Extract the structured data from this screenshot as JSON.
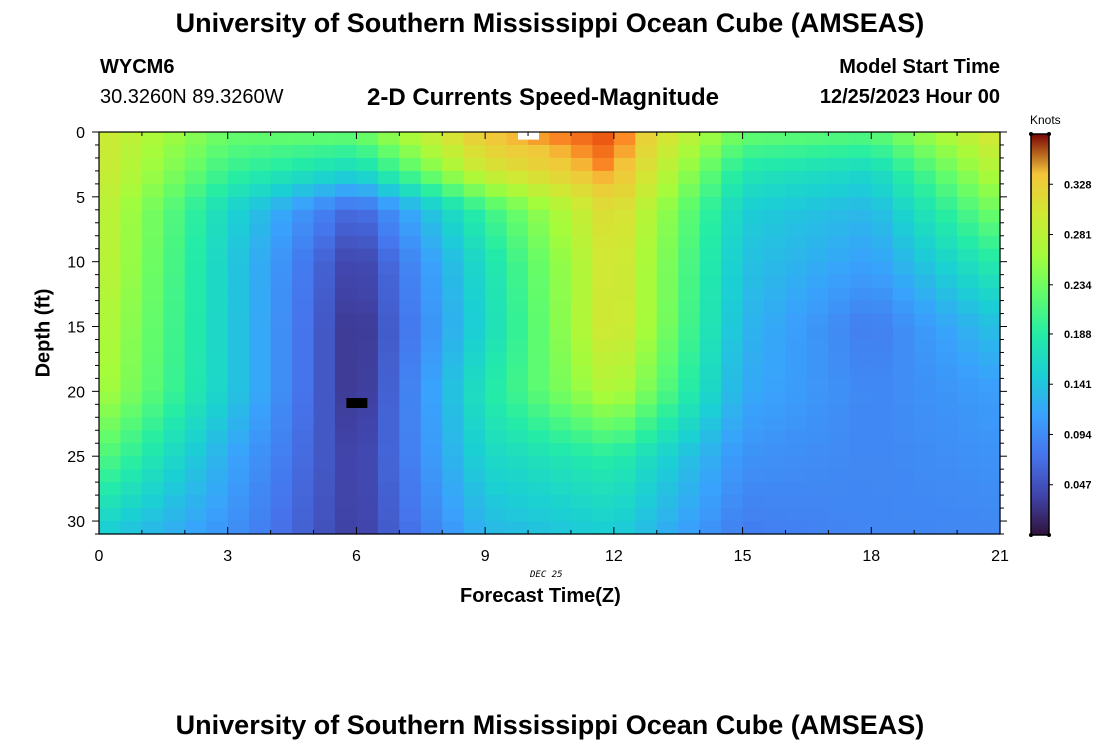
{
  "header": {
    "title": "University of Southern Mississippi Ocean Cube (AMSEAS)",
    "station_id": "WYCM6",
    "station_coords": "30.3260N  89.3260W",
    "plot_title": "2-D Currents Speed-Magnitude",
    "model_label": "Model Start Time",
    "model_time": "12/25/2023 Hour 00"
  },
  "footer": {
    "title": "University of Southern Mississippi Ocean Cube (AMSEAS)"
  },
  "chart_data": {
    "type": "heatmap",
    "xlabel": "Forecast Time(Z)",
    "ylabel": "Depth (ft)",
    "x_sublabel": "DEC 25",
    "xlim": [
      0,
      21
    ],
    "ylim": [
      0,
      31
    ],
    "x_ticks": [
      "0",
      "3",
      "6",
      "9",
      "12",
      "15",
      "18",
      "21"
    ],
    "y_ticks": [
      "0",
      "5",
      "10",
      "15",
      "20",
      "25",
      "30"
    ],
    "colorbar": {
      "label": "Knots",
      "min": 0.0,
      "max": 0.375,
      "ticks": [
        "0.328",
        "0.281",
        "0.234",
        "0.188",
        "0.141",
        "0.094",
        "0.047"
      ]
    },
    "grid": {
      "times": [
        0,
        3,
        6,
        9,
        12,
        15,
        18,
        21
      ],
      "depths": [
        0,
        3,
        6,
        10,
        15,
        20,
        25,
        31
      ],
      "values": [
        [
          0.3,
          0.23,
          0.23,
          0.34,
          0.36,
          0.23,
          0.22,
          0.31
        ],
        [
          0.3,
          0.2,
          0.16,
          0.3,
          0.35,
          0.18,
          0.16,
          0.28
        ],
        [
          0.29,
          0.16,
          0.06,
          0.2,
          0.32,
          0.15,
          0.13,
          0.24
        ],
        [
          0.29,
          0.15,
          0.03,
          0.17,
          0.31,
          0.14,
          0.11,
          0.19
        ],
        [
          0.28,
          0.15,
          0.02,
          0.16,
          0.31,
          0.13,
          0.08,
          0.14
        ],
        [
          0.27,
          0.15,
          0.02,
          0.18,
          0.28,
          0.12,
          0.09,
          0.11
        ],
        [
          0.22,
          0.12,
          0.03,
          0.16,
          0.19,
          0.1,
          0.09,
          0.1
        ],
        [
          0.15,
          0.1,
          0.03,
          0.13,
          0.15,
          0.08,
          0.09,
          0.09
        ]
      ]
    },
    "markers": [
      {
        "time": 10.0,
        "depth": 0.2,
        "color": "#ffffff"
      },
      {
        "time": 6.0,
        "depth": 20.9,
        "color": "#000000"
      }
    ]
  }
}
